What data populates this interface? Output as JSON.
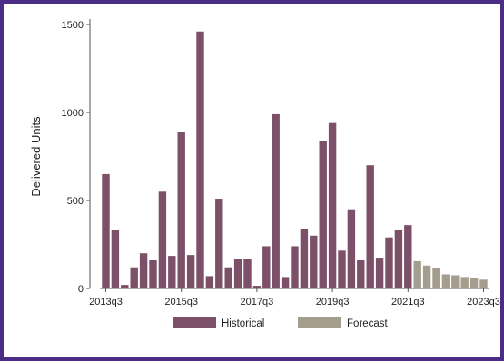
{
  "chart_data": {
    "type": "bar",
    "ylabel": "Delivered Units",
    "xlabel": "",
    "ylim": [
      0,
      1500
    ],
    "yticks": [
      0,
      500,
      1000,
      1500
    ],
    "x_tick_labels": [
      "2013q3",
      "2015q3",
      "2017q3",
      "2019q3",
      "2021q3",
      "2023q3"
    ],
    "legend": {
      "placement": "bottom-center",
      "entries": [
        "Historical",
        "Forecast"
      ]
    },
    "grid": false,
    "series": [
      {
        "name": "Historical",
        "color": "#7b5068",
        "points": [
          {
            "x": "2013q3",
            "y": 650
          },
          {
            "x": "2013q4",
            "y": 330
          },
          {
            "x": "2014q1",
            "y": 20
          },
          {
            "x": "2014q2",
            "y": 120
          },
          {
            "x": "2014q3",
            "y": 200
          },
          {
            "x": "2014q4",
            "y": 160
          },
          {
            "x": "2015q1",
            "y": 550
          },
          {
            "x": "2015q2",
            "y": 185
          },
          {
            "x": "2015q3",
            "y": 890
          },
          {
            "x": "2015q4",
            "y": 190
          },
          {
            "x": "2016q1",
            "y": 1460
          },
          {
            "x": "2016q2",
            "y": 70
          },
          {
            "x": "2016q3",
            "y": 510
          },
          {
            "x": "2016q4",
            "y": 120
          },
          {
            "x": "2017q1",
            "y": 170
          },
          {
            "x": "2017q2",
            "y": 165
          },
          {
            "x": "2017q3",
            "y": 15
          },
          {
            "x": "2017q4",
            "y": 240
          },
          {
            "x": "2018q1",
            "y": 990
          },
          {
            "x": "2018q2",
            "y": 65
          },
          {
            "x": "2018q3",
            "y": 240
          },
          {
            "x": "2018q4",
            "y": 340
          },
          {
            "x": "2019q1",
            "y": 300
          },
          {
            "x": "2019q2",
            "y": 840
          },
          {
            "x": "2019q3",
            "y": 940
          },
          {
            "x": "2019q4",
            "y": 215
          },
          {
            "x": "2020q1",
            "y": 450
          },
          {
            "x": "2020q2",
            "y": 160
          },
          {
            "x": "2020q3",
            "y": 700
          },
          {
            "x": "2020q4",
            "y": 175
          },
          {
            "x": "2021q1",
            "y": 290
          },
          {
            "x": "2021q2",
            "y": 330
          },
          {
            "x": "2021q3",
            "y": 360
          }
        ]
      },
      {
        "name": "Forecast",
        "color": "#a59e8e",
        "points": [
          {
            "x": "2021q4",
            "y": 155
          },
          {
            "x": "2022q1",
            "y": 130
          },
          {
            "x": "2022q2",
            "y": 115
          },
          {
            "x": "2022q3",
            "y": 80
          },
          {
            "x": "2022q4",
            "y": 75
          },
          {
            "x": "2023q1",
            "y": 65
          },
          {
            "x": "2023q2",
            "y": 60
          },
          {
            "x": "2023q3",
            "y": 50
          }
        ]
      }
    ]
  }
}
